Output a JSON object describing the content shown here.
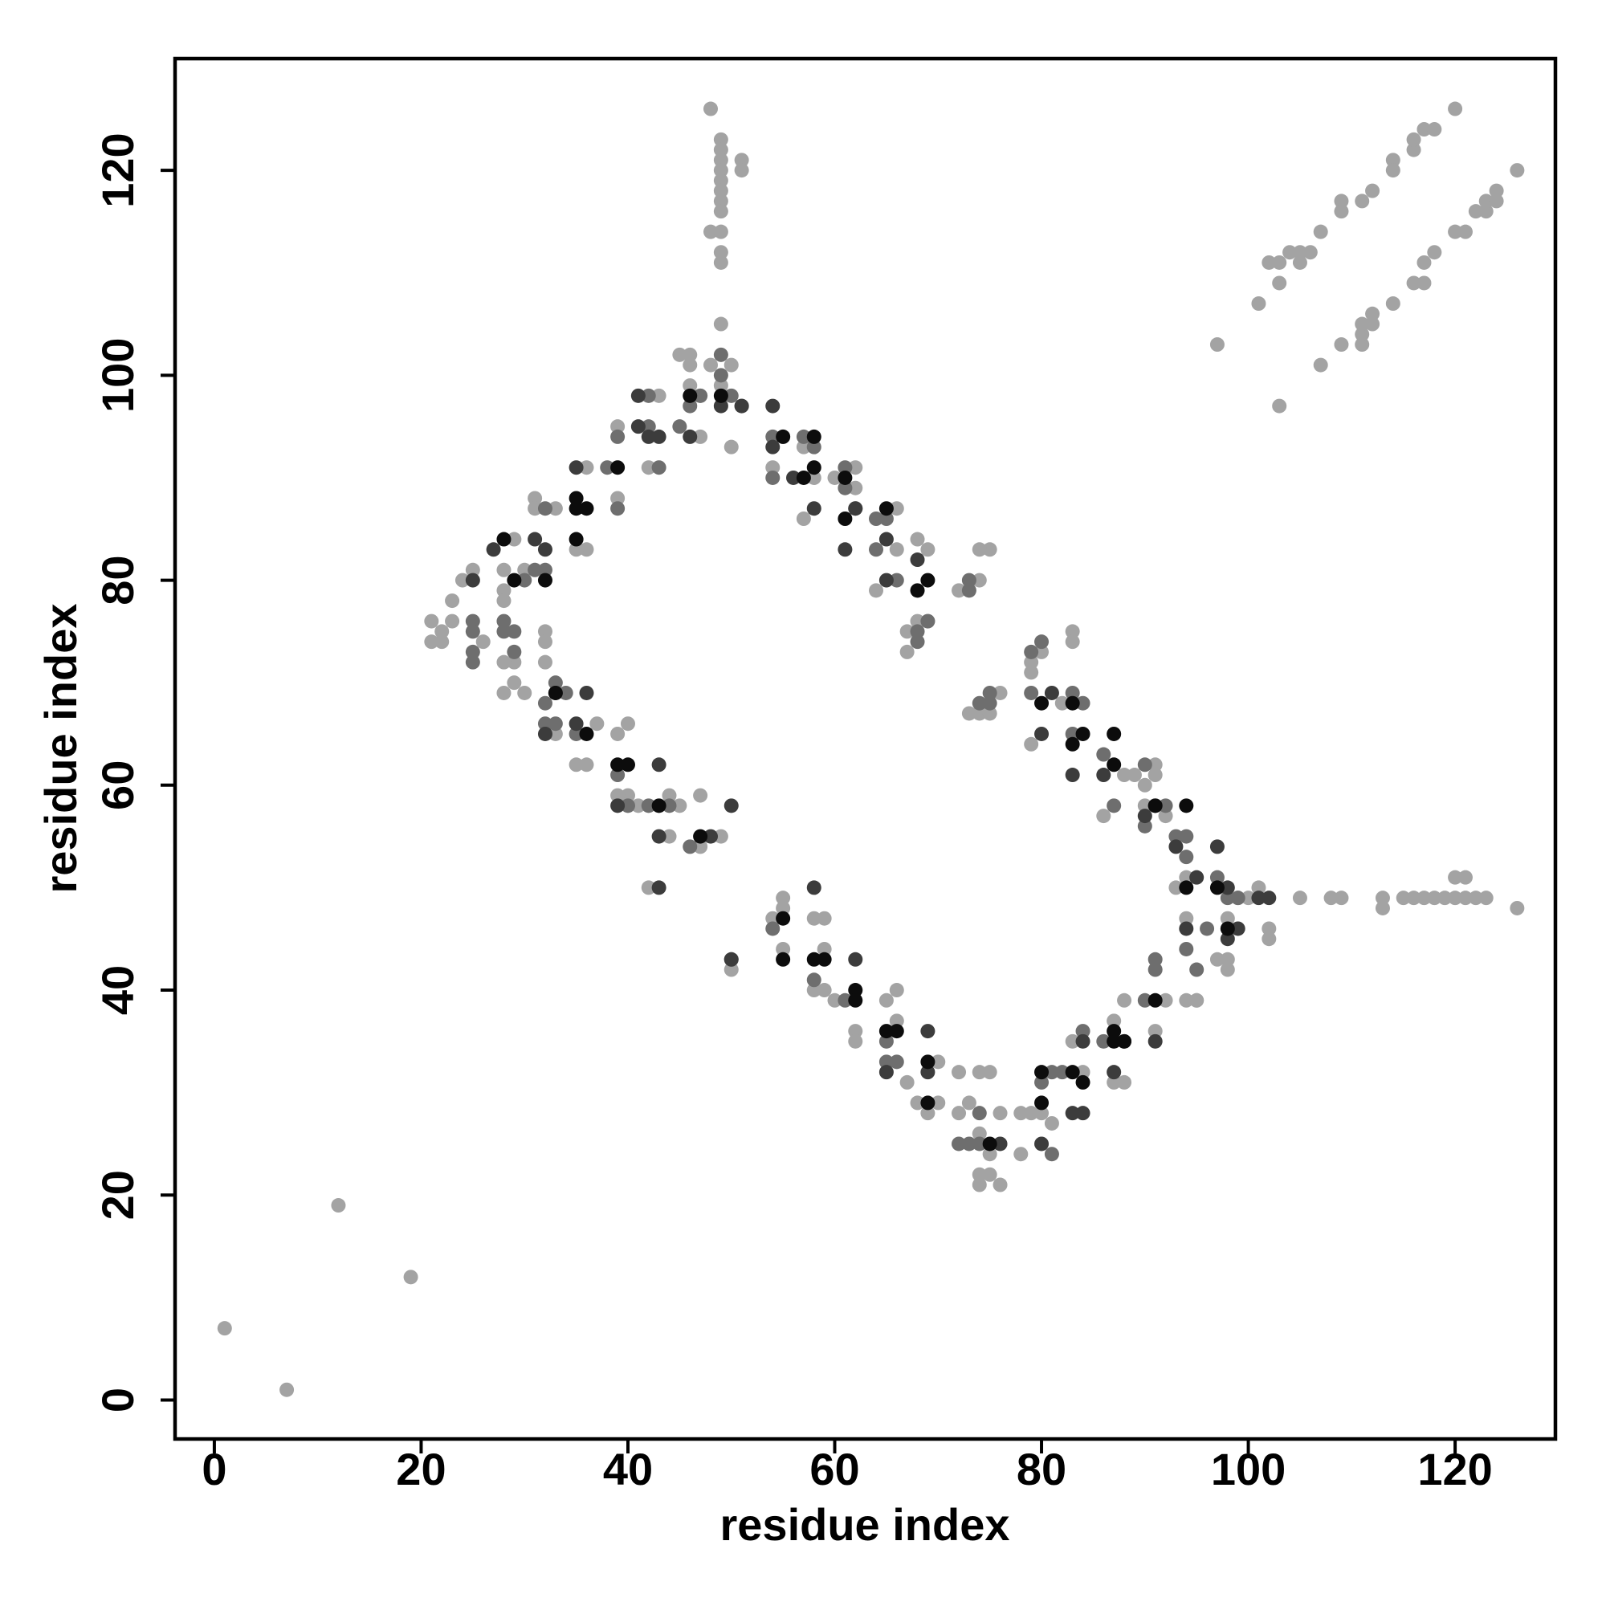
{
  "chart_data": {
    "type": "scatter",
    "x_label": "residue index",
    "y_label": "residue index",
    "xlim": [
      -3.8,
      129.7
    ],
    "ylim": [
      -3.8,
      130.9
    ],
    "xticks": [
      0,
      20,
      40,
      60,
      80,
      100,
      120
    ],
    "yticks": [
      0,
      20,
      40,
      60,
      80,
      100,
      120
    ],
    "grid": false,
    "series": [
      {
        "color": "#a3a3a3",
        "x": [
          1,
          7,
          12,
          19,
          48,
          49,
          49,
          49,
          49,
          49,
          49,
          49,
          49,
          48,
          49,
          49,
          49,
          51,
          51,
          49,
          97,
          101,
          102,
          103,
          103,
          104,
          105,
          105,
          106,
          107,
          109,
          109,
          111,
          112,
          114,
          114,
          116,
          116,
          117,
          118,
          120,
          103,
          107,
          109,
          111,
          111,
          111,
          112,
          112,
          114,
          116,
          117,
          117,
          118,
          120,
          121,
          122,
          123,
          123,
          124,
          124,
          126,
          105,
          108,
          109,
          113,
          113,
          115,
          116,
          117,
          118,
          119,
          120,
          121,
          122,
          123,
          120,
          121,
          126,
          99,
          100,
          101,
          102,
          102,
          21,
          21,
          22,
          22,
          23,
          23,
          24,
          25,
          26,
          28,
          28,
          28,
          29,
          30,
          31,
          31,
          33,
          36,
          36,
          35,
          39,
          39,
          43,
          42,
          45,
          46,
          46,
          46,
          47,
          47,
          48,
          49,
          50,
          50,
          55,
          54,
          57,
          57,
          58,
          60,
          62,
          62,
          64,
          66,
          66,
          68,
          69,
          67,
          67,
          68,
          69,
          72,
          74,
          75,
          74,
          73,
          74,
          75,
          76,
          79,
          79,
          79,
          80,
          83,
          83,
          82,
          86,
          88,
          89,
          90,
          91,
          91,
          90,
          92,
          93,
          94,
          94,
          95,
          94,
          98,
          98,
          98,
          29,
          29,
          28,
          28,
          30,
          32,
          32,
          32,
          33,
          35,
          36,
          37,
          39,
          40,
          40,
          39,
          41,
          44,
          44,
          45,
          47,
          47,
          49,
          42,
          50,
          55,
          55,
          55,
          54,
          58,
          59,
          59,
          58,
          59,
          60,
          62,
          62,
          65,
          66,
          66,
          67,
          68,
          69,
          70,
          70,
          72,
          72,
          73,
          74,
          74,
          74,
          74,
          75,
          75,
          76,
          76,
          75,
          78,
          78,
          79,
          80,
          81,
          83,
          84,
          87,
          88,
          88,
          87,
          91,
          92,
          95,
          97
        ],
        "y": [
          7,
          1,
          19,
          12,
          126,
          123,
          122,
          121,
          120,
          119,
          118,
          117,
          116,
          114,
          114,
          112,
          111,
          121,
          120,
          105,
          103,
          107,
          111,
          111,
          109,
          112,
          112,
          111,
          112,
          114,
          117,
          116,
          117,
          118,
          121,
          120,
          122,
          123,
          124,
          124,
          126,
          97,
          101,
          103,
          103,
          104,
          105,
          105,
          106,
          107,
          109,
          109,
          111,
          112,
          114,
          114,
          116,
          116,
          117,
          117,
          118,
          120,
          49,
          49,
          49,
          49,
          48,
          49,
          49,
          49,
          49,
          49,
          49,
          49,
          49,
          49,
          51,
          51,
          48,
          49,
          49,
          50,
          46,
          45,
          76,
          74,
          75,
          74,
          78,
          76,
          80,
          81,
          74,
          81,
          79,
          78,
          84,
          81,
          88,
          87,
          87,
          91,
          83,
          83,
          95,
          88,
          98,
          91,
          102,
          102,
          101,
          99,
          98,
          94,
          101,
          99,
          101,
          93,
          94,
          91,
          93,
          86,
          90,
          90,
          91,
          89,
          79,
          87,
          83,
          84,
          83,
          75,
          73,
          76,
          76,
          79,
          80,
          83,
          83,
          67,
          67,
          67,
          69,
          72,
          71,
          64,
          73,
          75,
          74,
          68,
          57,
          61,
          61,
          60,
          62,
          61,
          58,
          57,
          50,
          51,
          47,
          39,
          39,
          43,
          42,
          47,
          72,
          70,
          72,
          69,
          69,
          75,
          74,
          72,
          65,
          62,
          62,
          66,
          65,
          66,
          59,
          59,
          58,
          59,
          55,
          58,
          54,
          59,
          55,
          50,
          42,
          49,
          48,
          44,
          47,
          47,
          47,
          44,
          40,
          40,
          39,
          36,
          35,
          39,
          40,
          37,
          31,
          29,
          28,
          33,
          29,
          32,
          28,
          29,
          32,
          26,
          22,
          21,
          32,
          22,
          21,
          28,
          24,
          24,
          28,
          28,
          28,
          27,
          35,
          32,
          31,
          31,
          39,
          37,
          36,
          39,
          39,
          43
        ]
      },
      {
        "color": "#6e6e6e",
        "x": [
          25,
          25,
          25,
          25,
          28,
          28,
          29,
          29,
          30,
          31,
          32,
          32,
          33,
          32,
          32,
          33,
          39,
          39,
          38,
          39,
          40,
          42,
          42,
          43,
          45,
          46,
          47,
          49,
          49,
          50,
          51,
          54,
          54,
          57,
          58,
          61,
          61,
          62,
          64,
          65,
          64,
          66,
          68,
          68,
          69,
          73,
          73,
          74,
          75,
          75,
          79,
          79,
          80,
          83,
          83,
          84,
          86,
          87,
          90,
          90,
          92,
          93,
          94,
          94,
          96,
          97,
          98,
          99,
          94,
          95,
          91,
          91,
          90,
          86,
          84,
          82,
          81,
          80,
          81,
          74,
          74,
          73,
          72,
          65,
          66,
          65,
          61,
          58,
          54,
          46,
          44,
          42,
          50,
          34,
          35
        ],
        "y": [
          76,
          75,
          73,
          72,
          76,
          75,
          75,
          73,
          80,
          81,
          81,
          87,
          70,
          68,
          66,
          66,
          94,
          87,
          91,
          61,
          58,
          98,
          95,
          91,
          95,
          97,
          98,
          102,
          100,
          98,
          97,
          94,
          90,
          94,
          93,
          91,
          89,
          87,
          86,
          86,
          83,
          80,
          75,
          74,
          76,
          80,
          79,
          68,
          69,
          68,
          73,
          69,
          74,
          69,
          65,
          68,
          63,
          58,
          62,
          56,
          58,
          55,
          55,
          53,
          46,
          51,
          49,
          49,
          44,
          42,
          42,
          43,
          39,
          35,
          36,
          32,
          32,
          31,
          24,
          28,
          25,
          25,
          25,
          33,
          33,
          35,
          39,
          41,
          46,
          54,
          58,
          58,
          43,
          69,
          65
        ]
      },
      {
        "color": "#3c3c3c",
        "x": [
          25,
          27,
          31,
          32,
          35,
          41,
          41,
          42,
          43,
          46,
          54,
          54,
          56,
          58,
          61,
          62,
          65,
          65,
          68,
          33,
          32,
          36,
          35,
          39,
          43,
          43,
          43,
          48,
          50,
          50,
          58,
          62,
          65,
          69,
          69,
          76,
          80,
          83,
          84,
          84,
          87,
          88,
          91,
          90,
          91,
          93,
          95,
          94,
          97,
          98,
          99,
          98,
          101,
          102,
          80,
          83,
          86,
          81,
          51,
          49
        ],
        "y": [
          80,
          83,
          84,
          83,
          91,
          95,
          98,
          94,
          94,
          94,
          97,
          93,
          90,
          87,
          83,
          87,
          84,
          80,
          82,
          69,
          65,
          69,
          66,
          58,
          62,
          55,
          50,
          55,
          58,
          43,
          50,
          43,
          32,
          36,
          32,
          25,
          25,
          28,
          28,
          35,
          32,
          35,
          35,
          57,
          58,
          54,
          51,
          46,
          54,
          50,
          46,
          45,
          49,
          49,
          65,
          61,
          61,
          69,
          97,
          97
        ]
      },
      {
        "color": "#0c0c0c",
        "x": [
          28,
          29,
          32,
          35,
          35,
          35,
          36,
          39,
          39,
          40,
          43,
          36,
          33,
          46,
          49,
          47,
          55,
          58,
          58,
          57,
          61,
          61,
          65,
          68,
          69,
          55,
          55,
          58,
          59,
          62,
          62,
          65,
          66,
          69,
          69,
          75,
          80,
          80,
          83,
          84,
          87,
          87,
          88,
          91,
          91,
          94,
          94,
          97,
          98,
          80,
          83,
          83,
          84,
          87,
          87
        ],
        "y": [
          84,
          80,
          80,
          88,
          87,
          84,
          87,
          91,
          62,
          62,
          58,
          65,
          69,
          98,
          98,
          55,
          94,
          94,
          91,
          90,
          90,
          86,
          87,
          79,
          80,
          47,
          43,
          43,
          43,
          40,
          39,
          36,
          36,
          33,
          29,
          25,
          32,
          29,
          32,
          31,
          36,
          35,
          35,
          39,
          58,
          58,
          50,
          50,
          46,
          68,
          68,
          64,
          65,
          65,
          62
        ]
      }
    ]
  }
}
